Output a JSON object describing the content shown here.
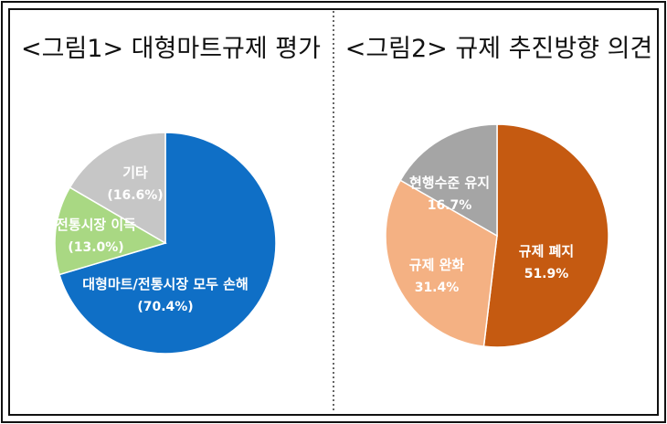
{
  "chart_data": [
    {
      "type": "pie",
      "title": "<그림1> 대형마트규제 평가",
      "start_angle_deg": 0,
      "slices": [
        {
          "label": "대형마트/전통시장 모두 손해",
          "value_label": "(70.4%)",
          "value": 70.4,
          "color": "#0f6fc6"
        },
        {
          "label": "전통시장 이득",
          "value_label": "(13.0%)",
          "value": 13.0,
          "color": "#a9d883"
        },
        {
          "label": "기타",
          "value_label": "(16.6%)",
          "value": 16.6,
          "color": "#c6c6c6"
        }
      ]
    },
    {
      "type": "pie",
      "title": "<그림2> 규제 추진방향 의견",
      "start_angle_deg": 0,
      "slices": [
        {
          "label": "규제 폐지",
          "value_label": "51.9%",
          "value": 51.9,
          "color": "#c55a11"
        },
        {
          "label": "규제 완화",
          "value_label": "31.4%",
          "value": 31.4,
          "color": "#f4b183"
        },
        {
          "label": "현행수준 유지",
          "value_label": "16.7%",
          "value": 16.7,
          "color": "#a5a5a5"
        }
      ]
    }
  ]
}
